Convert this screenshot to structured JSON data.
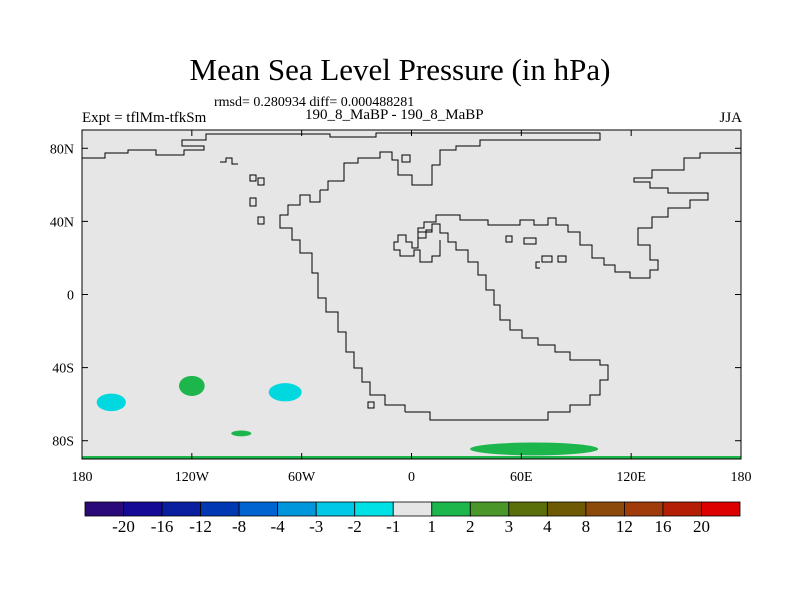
{
  "title": "Mean Sea Level Pressure (in hPa)",
  "stats": "rmsd= 0.280934 diff= 0.000488281",
  "expt": "Expt = tflMm-tfkSm",
  "subtitle": "190_8_MaBP - 190_8_MaBP",
  "season": "JJA",
  "map": {
    "projection": "cylindrical equidistant",
    "lon_range": [
      -180,
      180
    ],
    "lat_range": [
      -90,
      90
    ],
    "lat_ticks": [
      {
        "value": 80,
        "label": "80N"
      },
      {
        "value": 40,
        "label": "40N"
      },
      {
        "value": 0,
        "label": "0"
      },
      {
        "value": -40,
        "label": "40S"
      },
      {
        "value": -80,
        "label": "80S"
      }
    ],
    "lon_ticks": [
      {
        "value": -180,
        "label": "180"
      },
      {
        "value": -120,
        "label": "120W"
      },
      {
        "value": -60,
        "label": "60W"
      },
      {
        "value": 0,
        "label": "0"
      },
      {
        "value": 60,
        "label": "60E"
      },
      {
        "value": 120,
        "label": "120E"
      },
      {
        "value": 180,
        "label": "180"
      }
    ],
    "background_color": "#e6e6e6",
    "anomalies": [
      {
        "name": "anomaly-cyan-south-pacific-west",
        "lon": -164,
        "lat": -59,
        "rlon": 8,
        "rlat": 4.8,
        "color": "#00d8e0"
      },
      {
        "name": "anomaly-green-south-pacific",
        "lon": -120,
        "lat": -50,
        "rlon": 7,
        "rlat": 5.5,
        "color": "#1db64c"
      },
      {
        "name": "anomaly-cyan-south-pacific-east",
        "lon": -69,
        "lat": -53.5,
        "rlon": 9,
        "rlat": 5,
        "color": "#00d8e0"
      },
      {
        "name": "anomaly-green-small-south",
        "lon": -93,
        "lat": -76,
        "rlon": 5.5,
        "rlat": 1.6,
        "color": "#1db64c"
      },
      {
        "name": "anomaly-green-antarctic-east",
        "lon": 67,
        "lat": -84.5,
        "rlon": 35,
        "rlat": 3.5,
        "color": "#1db64c"
      }
    ]
  },
  "colorbar": {
    "colors": [
      "#2a0a78",
      "#140a96",
      "#0a1ea0",
      "#0038b4",
      "#0064d0",
      "#0096dc",
      "#00c8e6",
      "#00e1e6",
      "#e6e6e6",
      "#1db64c",
      "#4a9628",
      "#5a6e0a",
      "#6e5a05",
      "#8c4a0a",
      "#a03c0a",
      "#b41e05",
      "#dc0000"
    ],
    "labels": [
      "-20",
      "-16",
      "-12",
      "-8",
      "-4",
      "-3",
      "-2",
      "-1",
      "1",
      "2",
      "3",
      "4",
      "8",
      "12",
      "16",
      "20"
    ]
  }
}
